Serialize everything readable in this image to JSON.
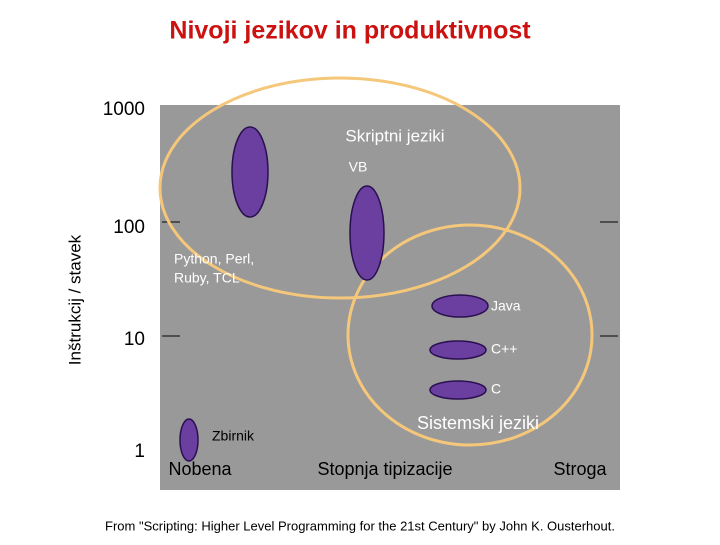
{
  "header": {
    "title": "Nivoji jezikov in produktivnost"
  },
  "y_axis": {
    "label": "Inštrukcij / stavek",
    "ticks": [
      "1000",
      "100",
      "10",
      "1"
    ]
  },
  "x_axis": {
    "label": "Stopnja tipizacije",
    "left": "Nobena",
    "right": "Stroga"
  },
  "groups": {
    "scripting": "Skriptni jeziki",
    "systems": "Sistemski jeziki"
  },
  "languages": {
    "vb": "VB",
    "python": [
      "Python, Perl,",
      "Ruby, TCL"
    ],
    "java": "Java",
    "cpp": "C++",
    "c": "C",
    "assembly": "Zbirnik"
  },
  "footnote": "From \"Scripting: Higher Level Programming for the 21st Century\" by John K. Ousterhout."
}
